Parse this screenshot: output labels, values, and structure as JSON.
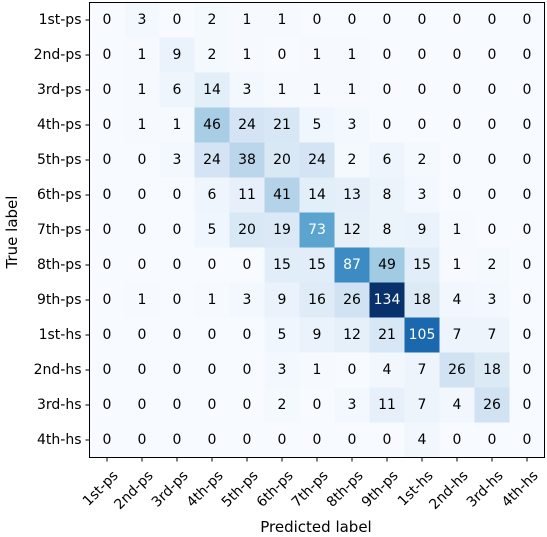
{
  "chart_data": {
    "type": "heatmap",
    "title": "",
    "xlabel": "Predicted label",
    "ylabel": "True label",
    "x_categories": [
      "1st-ps",
      "2nd-ps",
      "3rd-ps",
      "4th-ps",
      "5th-ps",
      "6th-ps",
      "7th-ps",
      "8th-ps",
      "9th-ps",
      "1st-hs",
      "2nd-hs",
      "3rd-hs",
      "4th-hs"
    ],
    "y_categories": [
      "1st-ps",
      "2nd-ps",
      "3rd-ps",
      "4th-ps",
      "5th-ps",
      "6th-ps",
      "7th-ps",
      "8th-ps",
      "9th-ps",
      "1st-hs",
      "2nd-hs",
      "3rd-hs",
      "4th-hs"
    ],
    "values": [
      [
        0,
        3,
        0,
        2,
        1,
        1,
        0,
        0,
        0,
        0,
        0,
        0,
        0
      ],
      [
        0,
        1,
        9,
        2,
        1,
        0,
        1,
        1,
        0,
        0,
        0,
        0,
        0
      ],
      [
        0,
        1,
        6,
        14,
        3,
        1,
        1,
        1,
        0,
        0,
        0,
        0,
        0
      ],
      [
        0,
        1,
        1,
        46,
        24,
        21,
        5,
        3,
        0,
        0,
        0,
        0,
        0
      ],
      [
        0,
        0,
        3,
        24,
        38,
        20,
        24,
        2,
        6,
        2,
        0,
        0,
        0
      ],
      [
        0,
        0,
        0,
        6,
        11,
        41,
        14,
        13,
        8,
        3,
        0,
        0,
        0
      ],
      [
        0,
        0,
        0,
        5,
        20,
        19,
        73,
        12,
        8,
        9,
        1,
        0,
        0
      ],
      [
        0,
        0,
        0,
        0,
        0,
        15,
        15,
        87,
        49,
        15,
        1,
        2,
        0
      ],
      [
        0,
        1,
        0,
        1,
        3,
        9,
        16,
        26,
        134,
        18,
        4,
        3,
        0
      ],
      [
        0,
        0,
        0,
        0,
        0,
        5,
        9,
        12,
        21,
        105,
        7,
        7,
        0
      ],
      [
        0,
        0,
        0,
        0,
        0,
        3,
        1,
        0,
        4,
        7,
        26,
        18,
        0
      ],
      [
        0,
        0,
        0,
        0,
        0,
        2,
        0,
        3,
        11,
        7,
        4,
        26,
        0
      ],
      [
        0,
        0,
        0,
        0,
        0,
        0,
        0,
        0,
        0,
        4,
        0,
        0,
        0
      ]
    ],
    "colormap": "Blues",
    "color_min": "#f7fbff",
    "color_max": "#08306b",
    "grid": false
  }
}
